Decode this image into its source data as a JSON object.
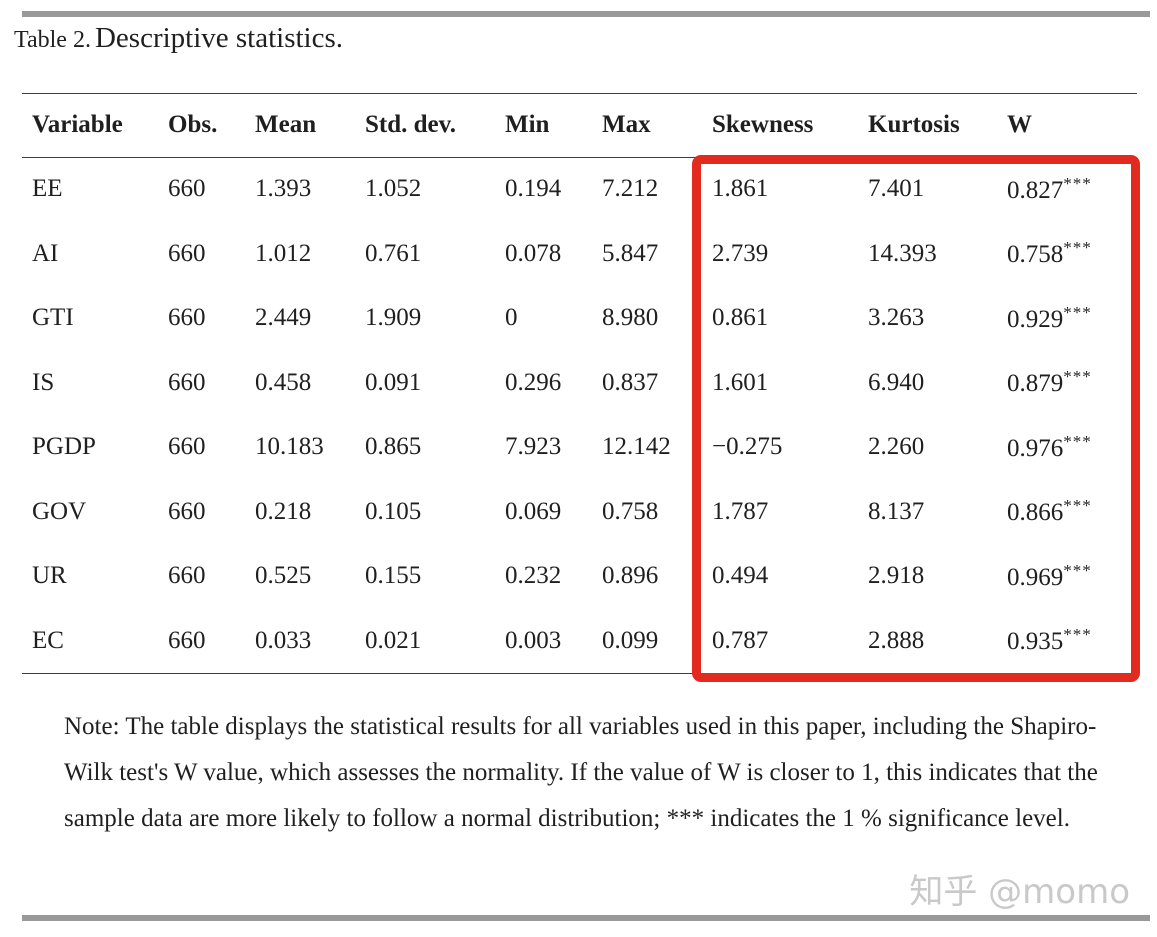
{
  "title": {
    "label": "Table 2.",
    "text": "Descriptive statistics."
  },
  "table": {
    "columns": [
      "Variable",
      "Obs.",
      "Mean",
      "Std. dev.",
      "Min",
      "Max",
      "Skewness",
      "Kurtosis",
      "W"
    ],
    "rows": [
      {
        "variable": "EE",
        "obs": "660",
        "mean": "1.393",
        "std_dev": "1.052",
        "min": "0.194",
        "max": "7.212",
        "skewness": "1.861",
        "kurtosis": "7.401",
        "w": "0.827",
        "w_stars": "***"
      },
      {
        "variable": "AI",
        "obs": "660",
        "mean": "1.012",
        "std_dev": "0.761",
        "min": "0.078",
        "max": "5.847",
        "skewness": "2.739",
        "kurtosis": "14.393",
        "w": "0.758",
        "w_stars": "***"
      },
      {
        "variable": "GTI",
        "obs": "660",
        "mean": "2.449",
        "std_dev": "1.909",
        "min": "0",
        "max": "8.980",
        "skewness": "0.861",
        "kurtosis": "3.263",
        "w": "0.929",
        "w_stars": "***"
      },
      {
        "variable": "IS",
        "obs": "660",
        "mean": "0.458",
        "std_dev": "0.091",
        "min": "0.296",
        "max": "0.837",
        "skewness": "1.601",
        "kurtosis": "6.940",
        "w": "0.879",
        "w_stars": "***"
      },
      {
        "variable": "PGDP",
        "obs": "660",
        "mean": "10.183",
        "std_dev": "0.865",
        "min": "7.923",
        "max": "12.142",
        "skewness": "−0.275",
        "kurtosis": "2.260",
        "w": "0.976",
        "w_stars": "***"
      },
      {
        "variable": "GOV",
        "obs": "660",
        "mean": "0.218",
        "std_dev": "0.105",
        "min": "0.069",
        "max": "0.758",
        "skewness": "1.787",
        "kurtosis": "8.137",
        "w": "0.866",
        "w_stars": "***"
      },
      {
        "variable": "UR",
        "obs": "660",
        "mean": "0.525",
        "std_dev": "0.155",
        "min": "0.232",
        "max": "0.896",
        "skewness": "0.494",
        "kurtosis": "2.918",
        "w": "0.969",
        "w_stars": "***"
      },
      {
        "variable": "EC",
        "obs": "660",
        "mean": "0.033",
        "std_dev": "0.021",
        "min": "0.003",
        "max": "0.099",
        "skewness": "0.787",
        "kurtosis": "2.888",
        "w": "0.935",
        "w_stars": "***"
      }
    ]
  },
  "highlight": {
    "columns": [
      "Skewness",
      "Kurtosis",
      "W"
    ],
    "color": "#e22b1e"
  },
  "note": "Note: The table displays the statistical results for all variables used in this paper, including the Shapiro-Wilk test's W value, which assesses the normality. If the value of W is closer to 1, this indicates that the sample data are more likely to follow a normal distribution; *** indicates the 1 % significance level.",
  "watermark": "知乎 @momo",
  "colors": {
    "text": "#1f1f1f",
    "rule": "#3d3d3d",
    "divider_bar": "#999999",
    "highlight": "#e22b1e",
    "watermark": "#c9c9c9"
  }
}
